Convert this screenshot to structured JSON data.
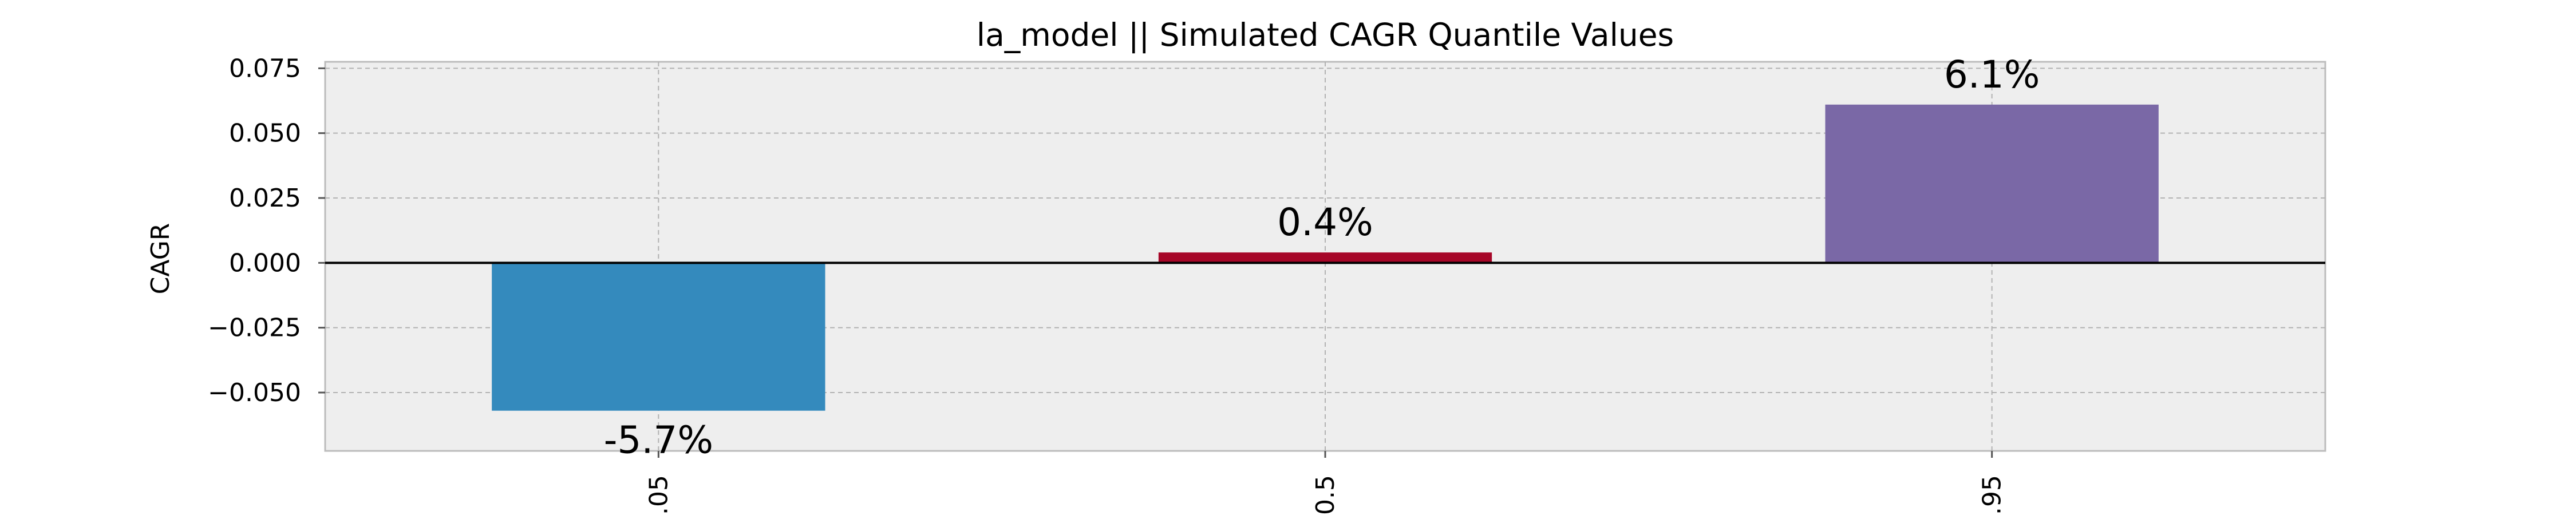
{
  "chart_data": {
    "type": "bar",
    "title": "la_model || Simulated CAGR Quantile Values",
    "xlabel": "",
    "ylabel": "CAGR",
    "categories": [
      "0.05",
      "0.5",
      "0.95"
    ],
    "values": [
      -0.057,
      0.004,
      0.061
    ],
    "data_labels": [
      "-5.7%",
      "0.4%",
      "6.1%"
    ],
    "colors": [
      "#348abd",
      "#a60628",
      "#7a68a6"
    ],
    "ylim": [
      -0.0725,
      0.0775
    ],
    "yticks": [
      -0.05,
      -0.025,
      0.0,
      0.025,
      0.05,
      0.075
    ],
    "ytick_labels": [
      "−0.050",
      "−0.025",
      "0.000",
      "0.025",
      "0.050",
      "0.075"
    ],
    "grid": true,
    "background": "#eeeeee",
    "zero_line_color": "#000000",
    "legend": "none"
  }
}
